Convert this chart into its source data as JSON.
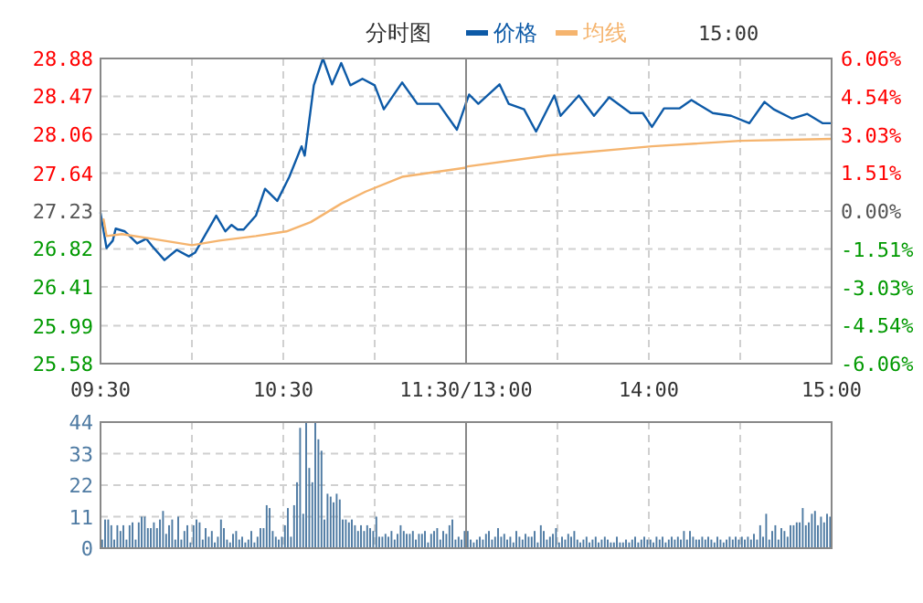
{
  "chart_data": [
    {
      "type": "line",
      "title": "分时图",
      "annotations": [
        "15:00"
      ],
      "legend": "top",
      "grid": true,
      "xlim": [
        9.5,
        11.5
      ],
      "xticks": [
        {
          "value": 9.5,
          "label": "09:30"
        },
        {
          "value": 10,
          "label": null
        },
        {
          "value": 10.5,
          "label": "10:30"
        },
        {
          "value": 11,
          "label": null
        },
        {
          "value": 11.5,
          "label": "11:30/13:00"
        }
      ],
      "ylim": [
        25.58,
        28.88
      ],
      "yticks": [
        25.58,
        25.99,
        26.41,
        26.82,
        27.23,
        27.64,
        28.06,
        28.47,
        28.88
      ],
      "series": [
        {
          "name": "价格",
          "color": "#0d5aa7",
          "x": [
            9.5,
            9.533,
            9.567,
            9.583,
            9.633,
            9.7,
            9.75,
            9.783,
            9.85,
            9.917,
            9.983,
            10.017,
            10.133,
            10.183,
            10.217,
            10.25,
            10.283,
            10.35,
            10.4,
            10.467,
            10.533,
            10.6,
            10.617,
            10.667,
            10.717,
            10.767,
            10.817,
            10.867,
            10.933,
            11,
            11.05,
            11.15,
            11.233,
            11.35,
            11.45,
            11.5
          ],
          "values": [
            27.21,
            26.83,
            26.91,
            27.04,
            27.01,
            26.88,
            26.93,
            26.85,
            26.7,
            26.81,
            26.74,
            26.78,
            27.18,
            27.01,
            27.08,
            27.03,
            27.03,
            27.18,
            27.47,
            27.34,
            27.6,
            27.93,
            27.83,
            28.59,
            28.88,
            28.6,
            28.83,
            28.59,
            28.66,
            28.59,
            28.33,
            28.62,
            28.39,
            28.39,
            28.11,
            28.4
          ]
        },
        {
          "name": "均线",
          "color": "#f5b46e",
          "x": [
            9.517,
            9.533,
            9.617,
            9.783,
            10,
            10.15,
            10.35,
            10.517,
            10.65,
            10.817,
            10.95,
            11.15,
            11.5
          ],
          "values": [
            27.14,
            26.96,
            26.98,
            26.93,
            26.86,
            26.91,
            26.96,
            27.01,
            27.11,
            27.31,
            27.44,
            27.6,
            27.7
          ]
        }
      ]
    },
    {
      "type": "line",
      "grid": true,
      "tick_labels": "x",
      "xlim": [
        13,
        15
      ],
      "xticks": [
        {
          "value": 13,
          "label": null
        },
        {
          "value": 13.5,
          "label": null
        },
        {
          "value": 14,
          "label": "14:00"
        },
        {
          "value": 14.5,
          "label": null
        },
        {
          "value": 15,
          "label": "15:00"
        }
      ],
      "ylim": [
        25.58,
        28.88
      ],
      "y2lim": [
        -6.06,
        6.06
      ],
      "y2ticks": [
        {
          "value": -6.06,
          "label": "-6.06%"
        },
        {
          "value": -4.54,
          "label": "-4.54%"
        },
        {
          "value": -3.03,
          "label": "-3.03%"
        },
        {
          "value": -1.51,
          "label": "-1.51%"
        },
        {
          "value": 0,
          "label": "0.00%"
        },
        {
          "value": 1.51,
          "label": "1.51%"
        },
        {
          "value": 3.03,
          "label": "3.03%"
        },
        {
          "value": 4.54,
          "label": "4.54%"
        },
        {
          "value": 6.06,
          "label": "6.06%"
        }
      ],
      "series": [
        {
          "color": "#0d5aa7",
          "x": [
            13,
            13.017,
            13.067,
            13.183,
            13.233,
            13.317,
            13.383,
            13.483,
            13.517,
            13.617,
            13.7,
            13.783,
            13.9,
            13.967,
            14.017,
            14.083,
            14.167,
            14.233,
            14.35,
            14.45,
            14.55,
            14.633,
            14.683,
            14.783,
            14.867,
            14.95,
            15
          ],
          "values": [
            28.4,
            28.49,
            28.39,
            28.6,
            28.39,
            28.33,
            28.09,
            28.48,
            28.26,
            28.48,
            28.26,
            28.46,
            28.29,
            28.29,
            28.14,
            28.34,
            28.34,
            28.43,
            28.29,
            28.26,
            28.18,
            28.41,
            28.33,
            28.23,
            28.28,
            28.18,
            28.18
          ]
        },
        {
          "color": "#f5b46e",
          "x": [
            13,
            13.45,
            14.017,
            14.5,
            15
          ],
          "values": [
            27.71,
            27.83,
            27.93,
            27.99,
            28.01
          ]
        }
      ]
    },
    {
      "type": "bar",
      "grid": true,
      "tick_labels": "y",
      "xlim": [
        9.5,
        11.5
      ],
      "xticks": [
        {
          "value": 9.5,
          "label": null
        },
        {
          "value": 10,
          "label": null
        },
        {
          "value": 10.5,
          "label": null
        },
        {
          "value": 11,
          "label": null
        },
        {
          "value": 11.5,
          "label": null
        }
      ],
      "ylim": [
        0,
        44
      ],
      "yticks": [
        0,
        11,
        22,
        33,
        44
      ],
      "series": [
        {
          "color": "#4f7ba3",
          "x": [
            9.517,
            9.533,
            9.55,
            9.567,
            9.583,
            9.6,
            9.617,
            9.633,
            9.65,
            9.667,
            9.683,
            9.7,
            9.717,
            9.733,
            9.75,
            9.767,
            9.783,
            9.8,
            9.817,
            9.833,
            9.85,
            9.867,
            9.883,
            9.9,
            9.917,
            9.933,
            9.95,
            9.967,
            9.983,
            10,
            10.017,
            10.033,
            10.05,
            10.067,
            10.083,
            10.1,
            10.117,
            10.133,
            10.15,
            10.167,
            10.183,
            10.2,
            10.217,
            10.233,
            10.25,
            10.267,
            10.283,
            10.3,
            10.317,
            10.333,
            10.35,
            10.367,
            10.383,
            10.4,
            10.417,
            10.433,
            10.45,
            10.467,
            10.483,
            10.5,
            10.517,
            10.533,
            10.55,
            10.567,
            10.583,
            10.6,
            10.617,
            10.633,
            10.65,
            10.667,
            10.683,
            10.7,
            10.717,
            10.733,
            10.75,
            10.767,
            10.783,
            10.8,
            10.817,
            10.833,
            10.85,
            10.867,
            10.883,
            10.9,
            10.917,
            10.933,
            10.95,
            10.967,
            10.983,
            11,
            11.017,
            11.033,
            11.05,
            11.067,
            11.083,
            11.1,
            11.117,
            11.133,
            11.15,
            11.167,
            11.183,
            11.2,
            11.217,
            11.233,
            11.25,
            11.267,
            11.283,
            11.3,
            11.317,
            11.333,
            11.35,
            11.367,
            11.383,
            11.4,
            11.417,
            11.433,
            11.45,
            11.467,
            11.483,
            11.5
          ],
          "values": [
            3,
            10,
            10,
            8,
            3,
            8,
            6,
            8,
            3,
            8,
            9,
            3,
            9,
            11,
            11,
            7,
            7,
            9,
            7,
            10,
            13,
            5,
            8,
            10,
            3,
            11,
            3,
            6,
            8,
            2,
            8,
            10,
            9,
            3,
            7,
            4,
            6,
            2,
            4,
            10,
            7,
            3,
            2,
            5,
            6,
            3,
            4,
            2,
            3,
            6,
            2,
            4,
            7,
            7,
            15,
            14,
            6,
            4,
            3,
            4,
            8,
            14,
            4,
            15,
            23,
            42,
            12,
            44,
            28,
            23,
            44,
            38,
            34,
            10,
            19,
            18,
            16,
            19,
            17,
            10,
            10,
            9,
            10,
            8,
            6,
            8,
            6,
            8,
            7,
            6,
            11,
            4,
            4,
            5,
            4,
            6,
            3,
            5,
            8,
            6,
            5,
            5,
            6,
            3,
            5,
            5,
            6,
            2,
            5,
            6,
            7,
            3,
            6,
            5,
            8,
            10,
            3,
            4,
            3,
            6
          ]
        }
      ]
    },
    {
      "type": "bar",
      "grid": true,
      "tick_labels": false,
      "xlim": [
        13,
        15
      ],
      "xticks": [
        {
          "value": 13,
          "label": null
        },
        {
          "value": 13.5,
          "label": null
        },
        {
          "value": 14,
          "label": null
        },
        {
          "value": 14.5,
          "label": null
        },
        {
          "value": 15,
          "label": null
        }
      ],
      "ylim": [
        0,
        44
      ],
      "series": [
        {
          "color": "#4f7ba3",
          "x": [
            13.017,
            13.033,
            13.05,
            13.067,
            13.083,
            13.1,
            13.117,
            13.133,
            13.15,
            13.167,
            13.183,
            13.2,
            13.217,
            13.233,
            13.25,
            13.267,
            13.283,
            13.3,
            13.317,
            13.333,
            13.35,
            13.367,
            13.383,
            13.4,
            13.417,
            13.433,
            13.45,
            13.467,
            13.483,
            13.5,
            13.517,
            13.533,
            13.55,
            13.567,
            13.583,
            13.6,
            13.617,
            13.633,
            13.65,
            13.667,
            13.683,
            13.7,
            13.717,
            13.733,
            13.75,
            13.767,
            13.783,
            13.8,
            13.817,
            13.833,
            13.85,
            13.867,
            13.883,
            13.9,
            13.917,
            13.933,
            13.95,
            13.967,
            13.983,
            14,
            14.017,
            14.033,
            14.05,
            14.067,
            14.083,
            14.1,
            14.117,
            14.133,
            14.15,
            14.167,
            14.183,
            14.2,
            14.217,
            14.233,
            14.25,
            14.267,
            14.283,
            14.3,
            14.317,
            14.333,
            14.35,
            14.367,
            14.383,
            14.4,
            14.417,
            14.433,
            14.45,
            14.467,
            14.483,
            14.5,
            14.517,
            14.533,
            14.55,
            14.567,
            14.583,
            14.6,
            14.617,
            14.633,
            14.65,
            14.667,
            14.683,
            14.7,
            14.717,
            14.733,
            14.75,
            14.767,
            14.783,
            14.8,
            14.817,
            14.833,
            14.85,
            14.867,
            14.883,
            14.9,
            14.917,
            14.933,
            14.95,
            14.967,
            14.983,
            15
          ],
          "values": [
            6,
            3,
            2,
            3,
            4,
            3,
            5,
            6,
            3,
            4,
            7,
            4,
            5,
            3,
            4,
            2,
            6,
            4,
            3,
            5,
            4,
            4,
            6,
            2,
            8,
            6,
            3,
            4,
            5,
            7,
            2,
            4,
            3,
            5,
            4,
            6,
            3,
            2,
            3,
            4,
            2,
            3,
            4,
            2,
            3,
            4,
            3,
            2,
            2,
            4,
            2,
            2,
            3,
            2,
            3,
            4,
            2,
            3,
            4,
            3,
            3,
            2,
            4,
            3,
            4,
            2,
            3,
            4,
            3,
            4,
            3,
            6,
            3,
            6,
            4,
            3,
            3,
            4,
            3,
            4,
            3,
            2,
            4,
            3,
            2,
            3,
            4,
            3,
            4,
            3,
            4,
            3,
            4,
            3,
            5,
            3,
            8,
            4,
            12,
            3,
            6,
            8,
            3,
            7,
            6,
            4,
            8,
            8,
            9,
            9,
            14,
            8,
            9,
            12,
            13,
            8,
            11,
            9,
            12,
            11
          ]
        }
      ]
    }
  ]
}
